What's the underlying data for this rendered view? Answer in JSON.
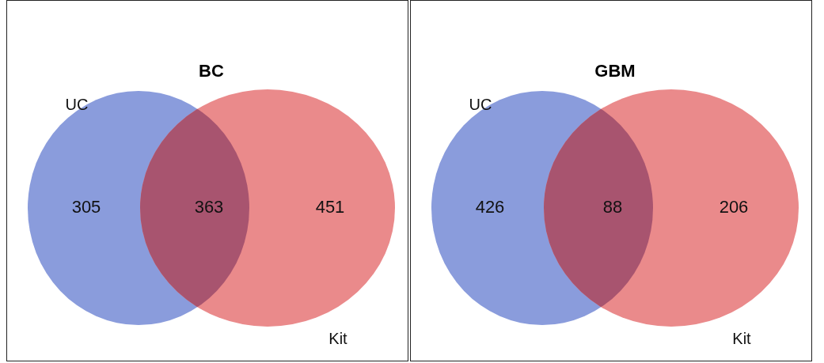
{
  "chart_data": [
    {
      "type": "other",
      "title": "BC",
      "categories": [
        null,
        null,
        null
      ],
      "values": [
        305,
        363,
        451
      ],
      "colors": [
        "#8a9cdc",
        "#a8546f",
        "#ea8a8b"
      ],
      "data_labels": true,
      "annotations": [
        "UC",
        "Kit"
      ]
    },
    {
      "type": "other",
      "title": "GBM",
      "categories": [
        null,
        null,
        null
      ],
      "values": [
        426,
        88,
        206
      ],
      "colors": [
        "#8a9cdc",
        "#a8546f",
        "#ea8a8b"
      ],
      "data_labels": true,
      "annotations": [
        "UC",
        "Kit"
      ]
    }
  ]
}
